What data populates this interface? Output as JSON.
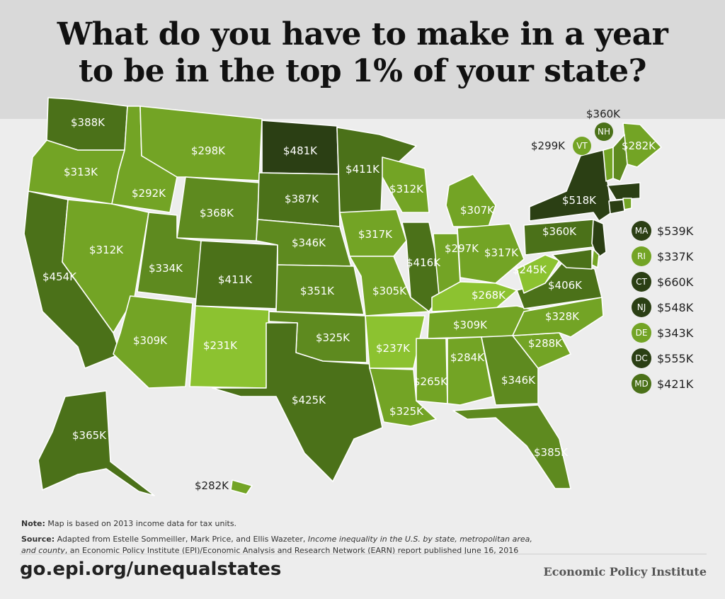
{
  "title": {
    "line1": "What do you have to make in a year",
    "line2": "to be in the top 1% of your state?"
  },
  "colors": {
    "c1": "#2b3f14",
    "c2": "#4b7119",
    "c3": "#5e8a1f",
    "c4": "#73a425",
    "c5": "#8cc230"
  },
  "states": [
    {
      "code": "WA",
      "label": "$388K"
    },
    {
      "code": "OR",
      "label": "$313K"
    },
    {
      "code": "CA",
      "label": "$454K"
    },
    {
      "code": "NV",
      "label": "$312K"
    },
    {
      "code": "ID",
      "label": "$292K"
    },
    {
      "code": "MT",
      "label": "$298K"
    },
    {
      "code": "WY",
      "label": "$368K"
    },
    {
      "code": "UT",
      "label": "$334K"
    },
    {
      "code": "AZ",
      "label": "$309K"
    },
    {
      "code": "CO",
      "label": "$411K"
    },
    {
      "code": "NM",
      "label": "$231K"
    },
    {
      "code": "ND",
      "label": "$481K"
    },
    {
      "code": "SD",
      "label": "$387K"
    },
    {
      "code": "NE",
      "label": "$346K"
    },
    {
      "code": "KS",
      "label": "$351K"
    },
    {
      "code": "OK",
      "label": "$325K"
    },
    {
      "code": "TX",
      "label": "$425K"
    },
    {
      "code": "MN",
      "label": "$411K"
    },
    {
      "code": "IA",
      "label": "$317K"
    },
    {
      "code": "MO",
      "label": "$305K"
    },
    {
      "code": "AR",
      "label": "$237K"
    },
    {
      "code": "LA",
      "label": "$325K"
    },
    {
      "code": "WI",
      "label": "$312K"
    },
    {
      "code": "IL",
      "label": "$416K"
    },
    {
      "code": "MI",
      "label": "$307K"
    },
    {
      "code": "IN",
      "label": "$297K"
    },
    {
      "code": "OH",
      "label": "$317K"
    },
    {
      "code": "KY",
      "label": "$268K"
    },
    {
      "code": "TN",
      "label": "$309K"
    },
    {
      "code": "MS",
      "label": "$265K"
    },
    {
      "code": "AL",
      "label": "$284K"
    },
    {
      "code": "GA",
      "label": "$346K"
    },
    {
      "code": "FL",
      "label": "$385K"
    },
    {
      "code": "SC",
      "label": "$288K"
    },
    {
      "code": "NC",
      "label": "$328K"
    },
    {
      "code": "VA",
      "label": "$406K"
    },
    {
      "code": "WV",
      "label": "$245K"
    },
    {
      "code": "PA",
      "label": "$360K"
    },
    {
      "code": "NY",
      "label": "$518K"
    },
    {
      "code": "ME",
      "label": "$282K"
    },
    {
      "code": "AK",
      "label": "$365K"
    },
    {
      "code": "HI",
      "label": "$282K"
    }
  ],
  "small_states": {
    "NH": {
      "code": "NH",
      "label": "$360K"
    },
    "VT": {
      "code": "VT",
      "label": "$299K"
    }
  },
  "legend": [
    {
      "code": "MA",
      "label": "$539K",
      "color": "#2b3f14"
    },
    {
      "code": "RI",
      "label": "$337K",
      "color": "#73a425"
    },
    {
      "code": "CT",
      "label": "$660K",
      "color": "#2b3f14"
    },
    {
      "code": "NJ",
      "label": "$548K",
      "color": "#2b3f14"
    },
    {
      "code": "DE",
      "label": "$343K",
      "color": "#73a425"
    },
    {
      "code": "DC",
      "label": "$555K",
      "color": "#2b3f14"
    },
    {
      "code": "MD",
      "label": "$421K",
      "color": "#4b7119"
    }
  ],
  "note": {
    "label": "Note:",
    "text": "Map is based on 2013 income data for tax units."
  },
  "source": {
    "label": "Source:",
    "text1": "Adapted from Estelle Sommeiller, Mark Price, and Ellis Wazeter, ",
    "italic": "Income inequality in the U.S. by state, metropolitan area, and county",
    "text2": ", an Economic Policy Institute (EPI)/Economic Analysis and Research Network (EARN) report published June 16, 2016"
  },
  "footer": {
    "url": "go.epi.org/unequalstates",
    "brand": "Economic Policy Institute"
  }
}
